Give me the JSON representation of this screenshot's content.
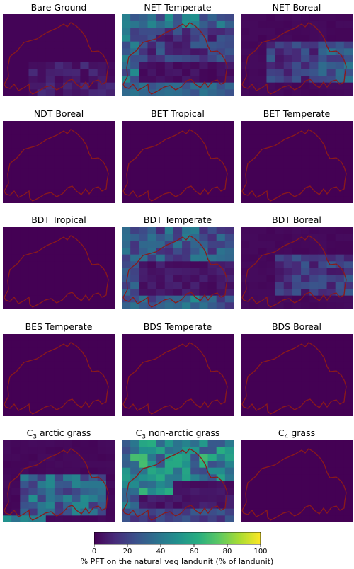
{
  "panel_titles": {
    "bare": "Bare Ground",
    "net_temp": "NET Temperate",
    "net_boreal": "NET Boreal",
    "ndt_boreal": "NDT Boreal",
    "bet_trop": "BET Tropical",
    "bet_temp": "BET Temperate",
    "bdt_trop": "BDT Tropical",
    "bdt_temp": "BDT Temperate",
    "bdt_boreal": "BDT Boreal",
    "bes_temp": "BES Temperate",
    "bds_temp": "BDS Temperate",
    "bds_boreal": "BDS Boreal",
    "c3_arctic": "C3 arctic grass",
    "c3_nonarctic": "C3 non-arctic grass",
    "c4": "C4 grass"
  },
  "chart_data": {
    "type": "heatmap",
    "layout": "5x3 small multiples",
    "panels": [
      {
        "name": "Bare Ground",
        "pattern": "bare"
      },
      {
        "name": "NET Temperate",
        "pattern": "net_temp"
      },
      {
        "name": "NET Boreal",
        "pattern": "net_boreal"
      },
      {
        "name": "NDT Boreal",
        "pattern": "zero"
      },
      {
        "name": "BET Tropical",
        "pattern": "zero"
      },
      {
        "name": "BET Temperate",
        "pattern": "zero"
      },
      {
        "name": "BDT Tropical",
        "pattern": "zero"
      },
      {
        "name": "BDT Temperate",
        "pattern": "bdt_temp"
      },
      {
        "name": "BDT Boreal",
        "pattern": "bdt_boreal"
      },
      {
        "name": "BES Temperate",
        "pattern": "zero"
      },
      {
        "name": "BDS Temperate",
        "pattern": "zero"
      },
      {
        "name": "BDS Boreal",
        "pattern": "zero"
      },
      {
        "name": "C3 arctic grass",
        "pattern": "c3_arctic"
      },
      {
        "name": "C3 non-arctic grass",
        "pattern": "c3_nonarctic"
      },
      {
        "name": "C4 grass",
        "pattern": "zero"
      }
    ],
    "colormap": "viridis",
    "colorbar": {
      "label": "% PFT on the natural veg landunit (% of landunit)",
      "range": [
        0,
        100
      ],
      "ticks": [
        0,
        20,
        40,
        60,
        80,
        100
      ]
    },
    "overlay": "Switzerland border outline (dark red)"
  }
}
